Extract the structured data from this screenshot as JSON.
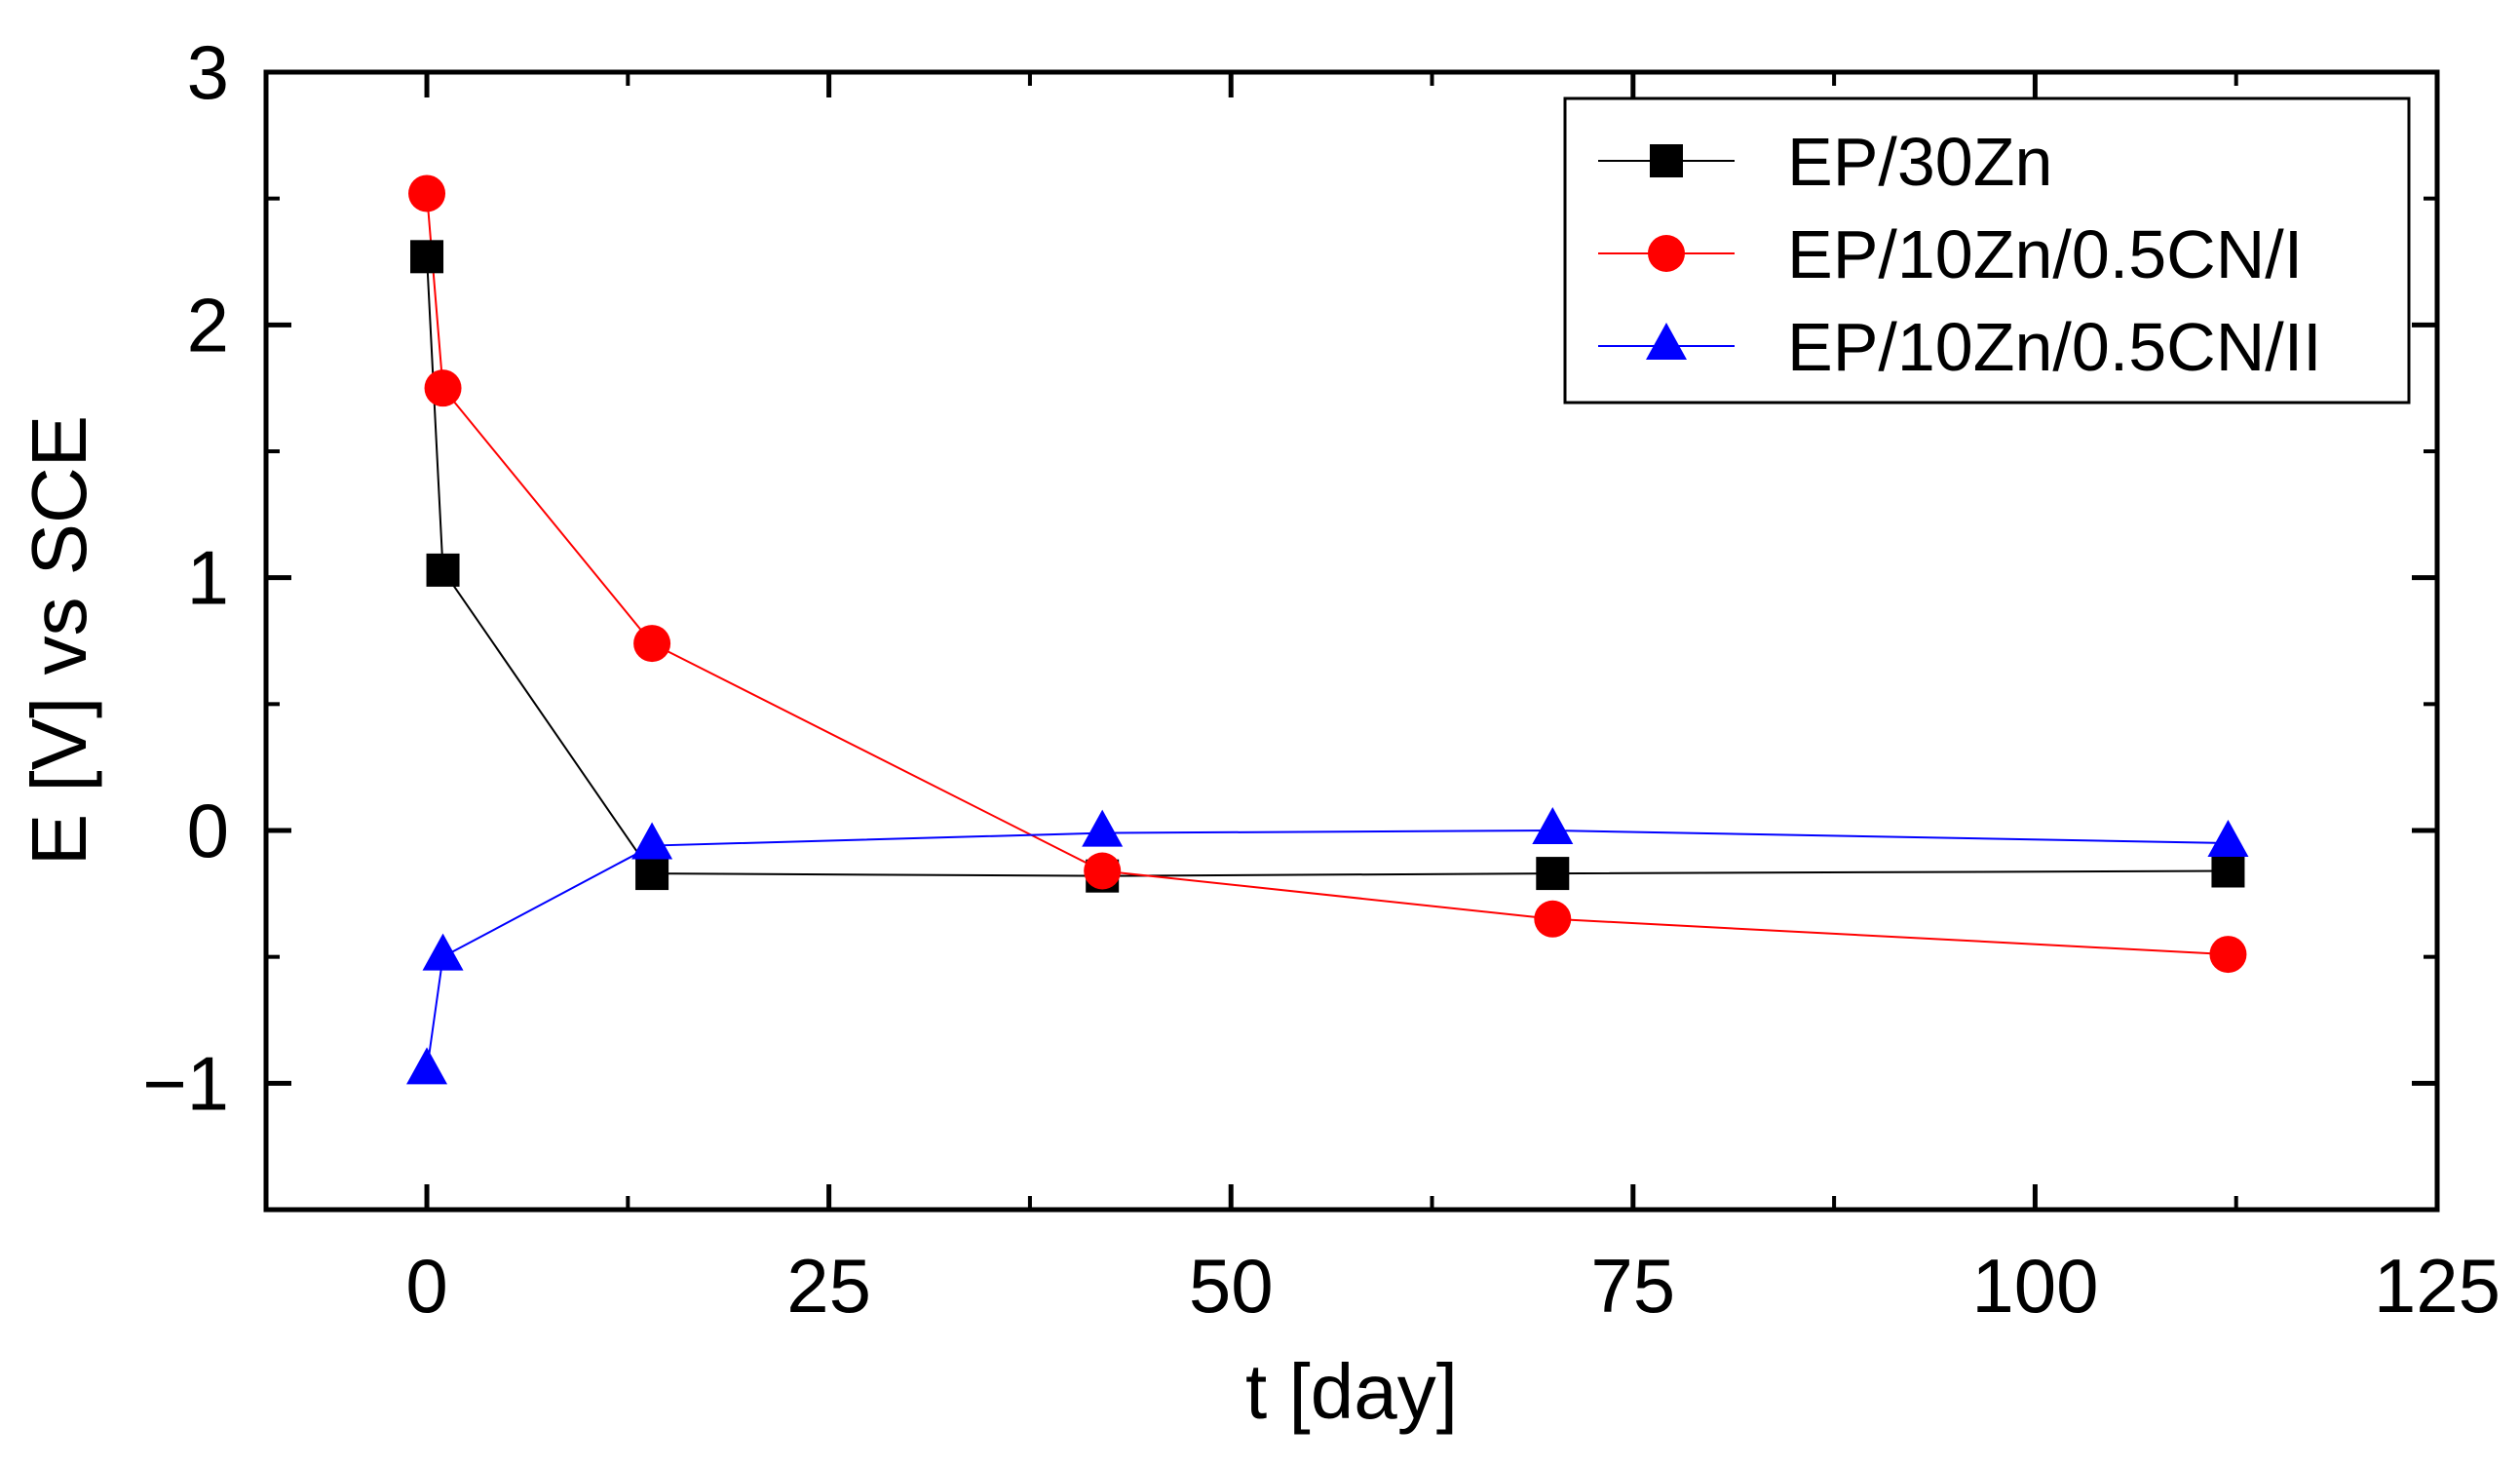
{
  "chart_data": {
    "type": "line",
    "xlabel": "t [day]",
    "ylabel": "E [V] vs SCE",
    "xlim": [
      -10,
      125
    ],
    "ylim": [
      -1.5,
      3
    ],
    "xticks": [
      0,
      25,
      50,
      75,
      100,
      125
    ],
    "xtick_labels": [
      "0",
      "25",
      "50",
      "75",
      "100",
      "125"
    ],
    "yticks": [
      -1,
      0,
      1,
      2,
      3
    ],
    "ytick_labels": [
      "−1",
      "0",
      "1",
      "2",
      "3"
    ],
    "grid": false,
    "legend_position": "top-right",
    "series": [
      {
        "name": "EP/30Zn",
        "color": "#000000",
        "marker": "square",
        "x": [
          0,
          1,
          14,
          42,
          70,
          112
        ],
        "y": [
          2.27,
          1.03,
          -0.17,
          -0.18,
          -0.17,
          -0.16
        ]
      },
      {
        "name": "EP/10Zn/0.5CN/I",
        "color": "#ff0000",
        "marker": "circle",
        "x": [
          0,
          1,
          14,
          42,
          70,
          112
        ],
        "y": [
          2.52,
          1.75,
          0.74,
          -0.16,
          -0.35,
          -0.49
        ]
      },
      {
        "name": "EP/10Zn/0.5CN/II",
        "color": "#0000ff",
        "marker": "triangle",
        "x": [
          0,
          1,
          14,
          42,
          70,
          112
        ],
        "y": [
          -0.95,
          -0.5,
          -0.06,
          -0.01,
          0.0,
          -0.05
        ]
      }
    ]
  }
}
